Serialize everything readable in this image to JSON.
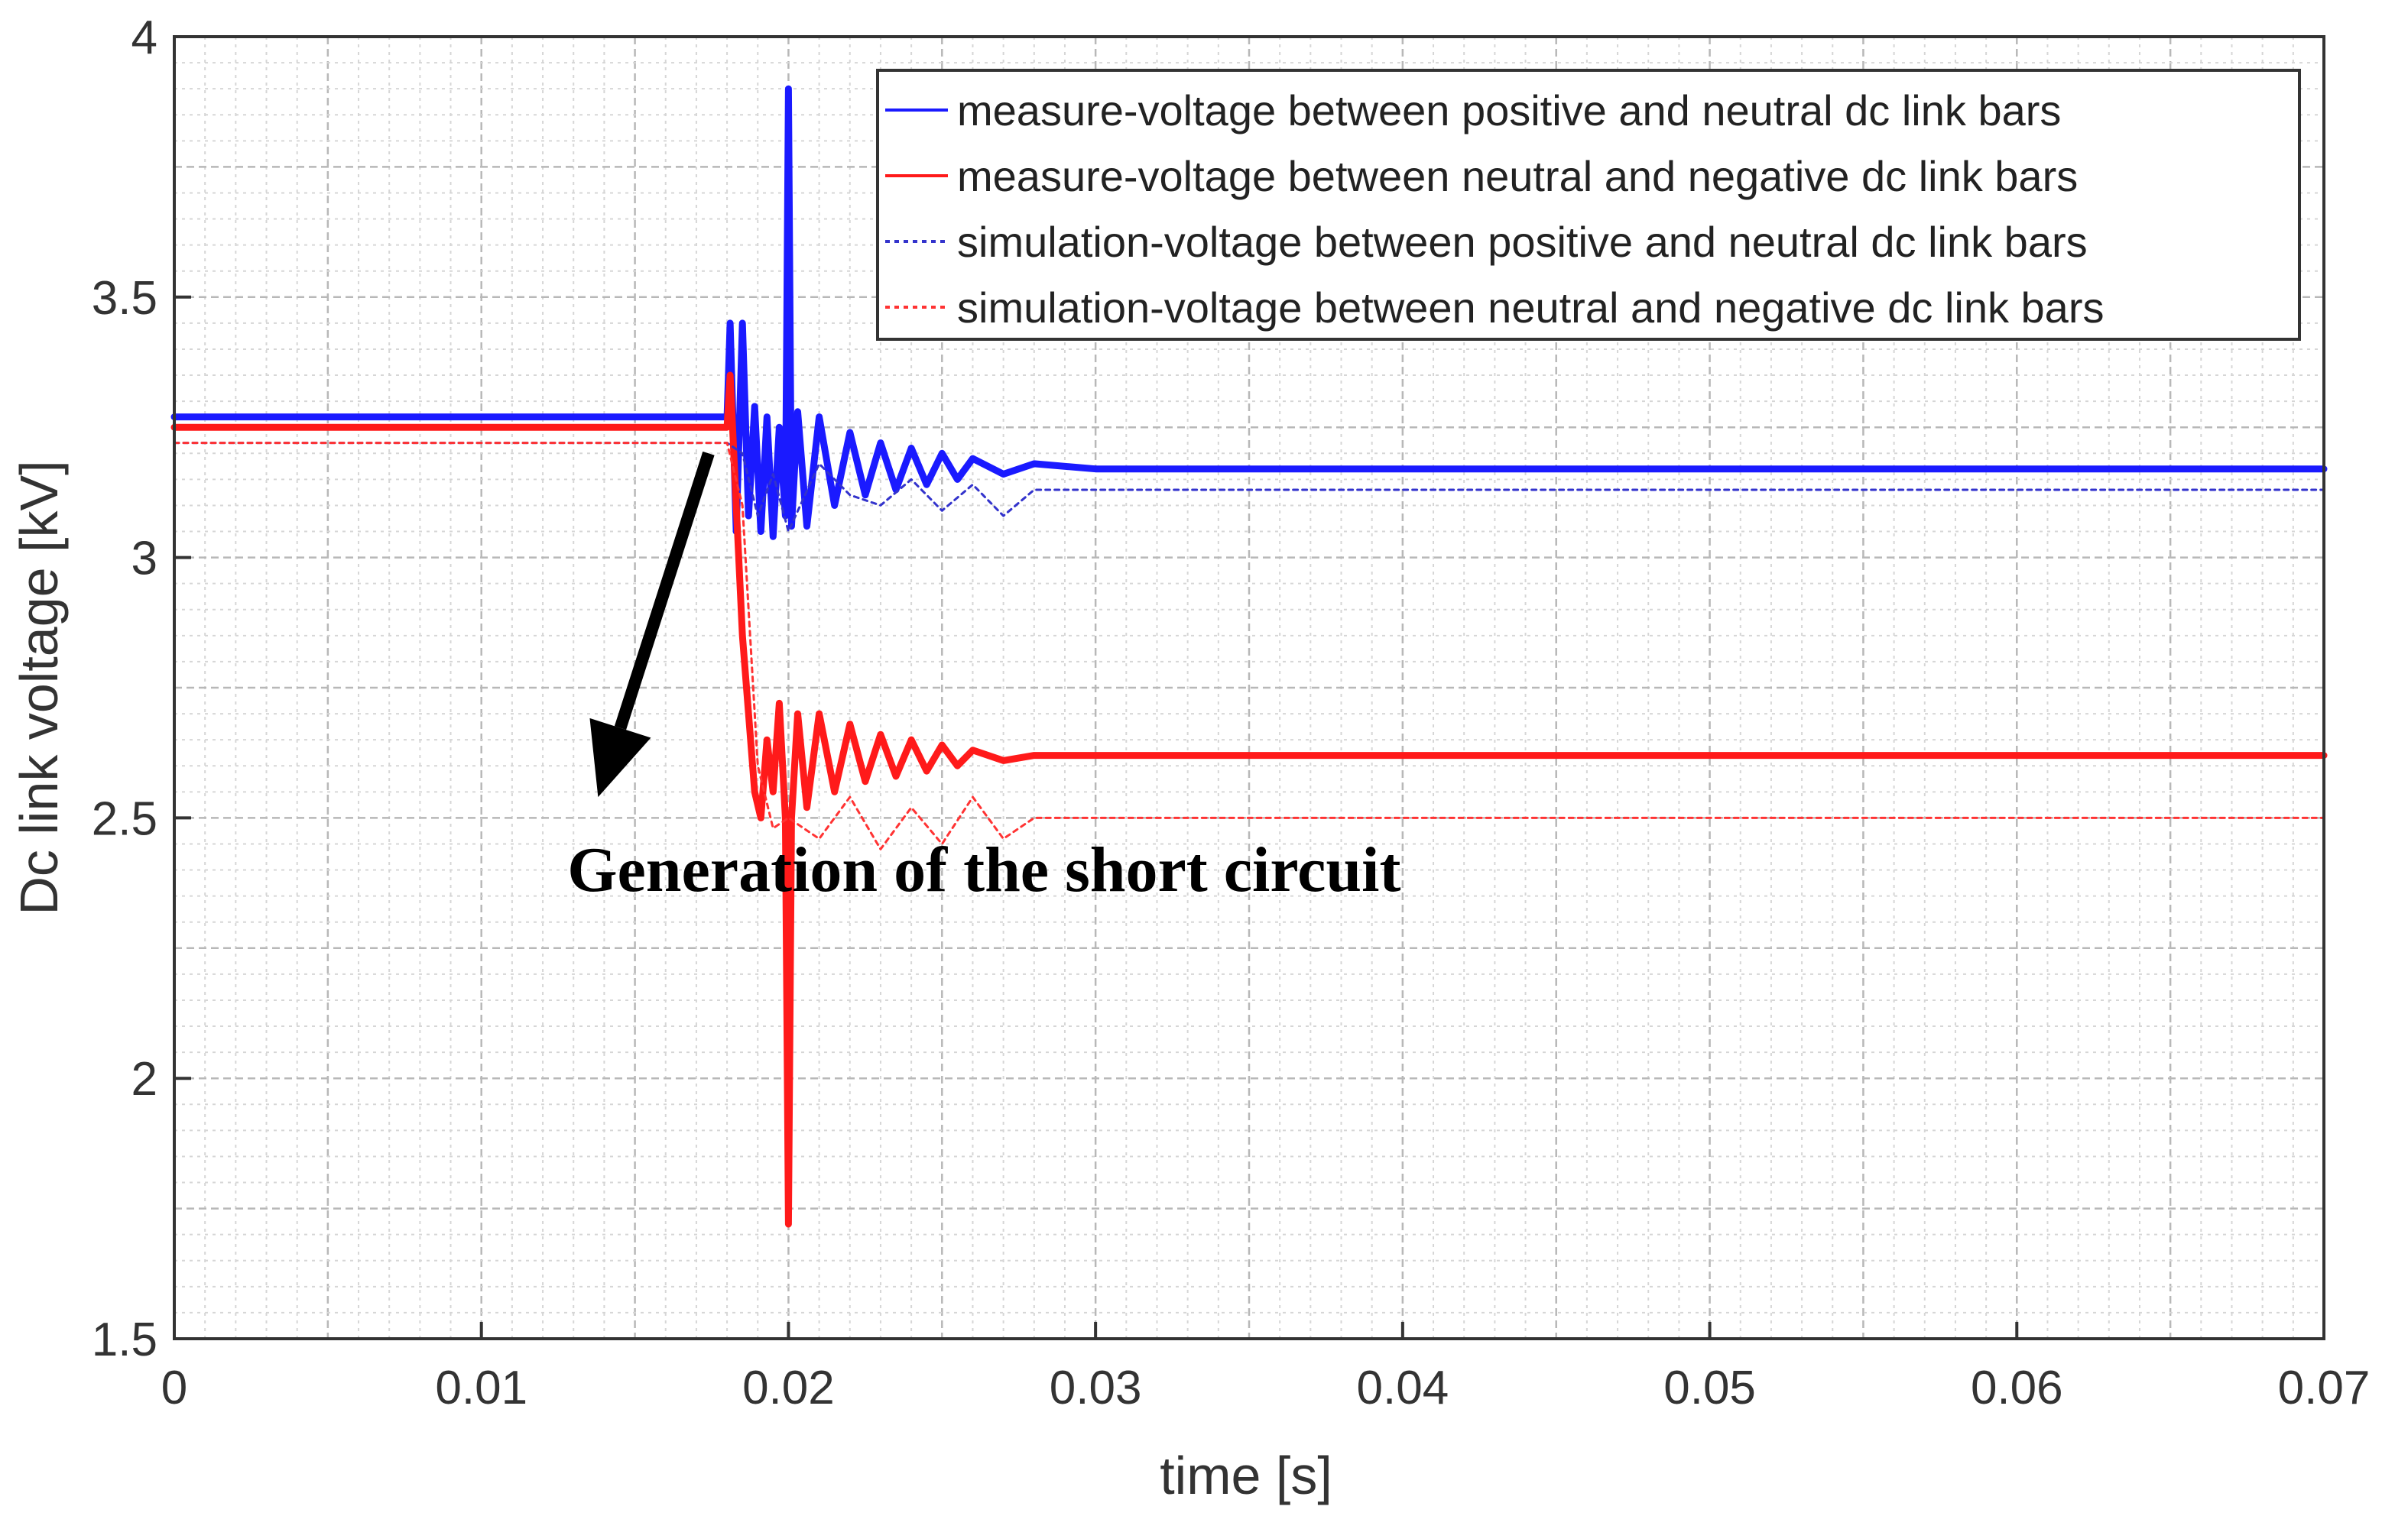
{
  "chart_data": {
    "type": "line",
    "title": "",
    "xlabel": "time [s]",
    "ylabel": "Dc link voltage [kV]",
    "xlim": [
      0,
      0.07
    ],
    "ylim": [
      1.5,
      4
    ],
    "xticks": [
      0,
      0.01,
      0.02,
      0.03,
      0.04,
      0.05,
      0.06,
      0.07
    ],
    "xtick_labels": [
      "0",
      "0.01",
      "0.02",
      "0.03",
      "0.04",
      "0.05",
      "0.06",
      "0.07"
    ],
    "yticks": [
      1.5,
      2,
      2.5,
      3,
      3.5,
      4
    ],
    "ytick_labels": [
      "1.5",
      "2",
      "2.5",
      "3",
      "3.5",
      "4"
    ],
    "grid": true,
    "legend_position": "top-right",
    "series": [
      {
        "name": "measure-voltage between positive and neutral dc link bars",
        "color": "#1a1aff",
        "style": "solid",
        "x": [
          0,
          0.018,
          0.0181,
          0.0183,
          0.0185,
          0.0187,
          0.0189,
          0.0191,
          0.0193,
          0.0195,
          0.0197,
          0.0199,
          0.02,
          0.0201,
          0.0203,
          0.0206,
          0.021,
          0.0215,
          0.022,
          0.0225,
          0.023,
          0.0235,
          0.024,
          0.0245,
          0.025,
          0.0255,
          0.026,
          0.027,
          0.028,
          0.03,
          0.04,
          0.05,
          0.06,
          0.07
        ],
        "values": [
          3.27,
          3.27,
          3.45,
          3.05,
          3.45,
          3.08,
          3.29,
          3.05,
          3.27,
          3.04,
          3.25,
          3.08,
          3.9,
          3.06,
          3.28,
          3.06,
          3.27,
          3.1,
          3.24,
          3.12,
          3.22,
          3.13,
          3.21,
          3.14,
          3.2,
          3.15,
          3.19,
          3.16,
          3.18,
          3.17,
          3.17,
          3.17,
          3.17,
          3.17
        ]
      },
      {
        "name": "measure-voltage between neutral and negative dc link bars",
        "color": "#ff1a1a",
        "style": "solid",
        "x": [
          0,
          0.018,
          0.0181,
          0.0183,
          0.0185,
          0.0187,
          0.0189,
          0.0191,
          0.0193,
          0.0195,
          0.0197,
          0.0199,
          0.02,
          0.0201,
          0.0203,
          0.0206,
          0.021,
          0.0215,
          0.022,
          0.0225,
          0.023,
          0.0235,
          0.024,
          0.0245,
          0.025,
          0.0255,
          0.026,
          0.027,
          0.028,
          0.03,
          0.04,
          0.05,
          0.06,
          0.07
        ],
        "values": [
          3.25,
          3.25,
          3.35,
          3.1,
          2.85,
          2.7,
          2.55,
          2.5,
          2.65,
          2.55,
          2.72,
          2.5,
          1.72,
          2.5,
          2.7,
          2.52,
          2.7,
          2.55,
          2.68,
          2.57,
          2.66,
          2.58,
          2.65,
          2.59,
          2.64,
          2.6,
          2.63,
          2.61,
          2.62,
          2.62,
          2.62,
          2.62,
          2.62,
          2.62
        ]
      },
      {
        "name": "simulation-voltage between positive and neutral dc link bars",
        "color": "#3333cc",
        "style": "dotted",
        "x": [
          0,
          0.018,
          0.0185,
          0.019,
          0.0195,
          0.02,
          0.021,
          0.022,
          0.023,
          0.024,
          0.025,
          0.026,
          0.027,
          0.028,
          0.07
        ],
        "values": [
          3.22,
          3.22,
          3.2,
          3.08,
          3.16,
          3.05,
          3.18,
          3.12,
          3.1,
          3.15,
          3.09,
          3.14,
          3.08,
          3.13,
          3.13
        ]
      },
      {
        "name": "simulation-voltage between neutral and negative dc link bars",
        "color": "#ff3333",
        "style": "dotted",
        "x": [
          0,
          0.018,
          0.0185,
          0.019,
          0.0195,
          0.02,
          0.021,
          0.022,
          0.023,
          0.024,
          0.025,
          0.026,
          0.027,
          0.028,
          0.07
        ],
        "values": [
          3.22,
          3.22,
          3.1,
          2.6,
          2.48,
          2.5,
          2.46,
          2.54,
          2.44,
          2.52,
          2.45,
          2.54,
          2.46,
          2.5,
          2.5
        ]
      }
    ],
    "annotations": [
      {
        "text": "Generation of the short circuit",
        "x": 0.0128,
        "y": 2.36,
        "arrow_from": [
          0.0174,
          3.2
        ],
        "arrow_to": [
          0.0138,
          2.54
        ]
      }
    ]
  }
}
